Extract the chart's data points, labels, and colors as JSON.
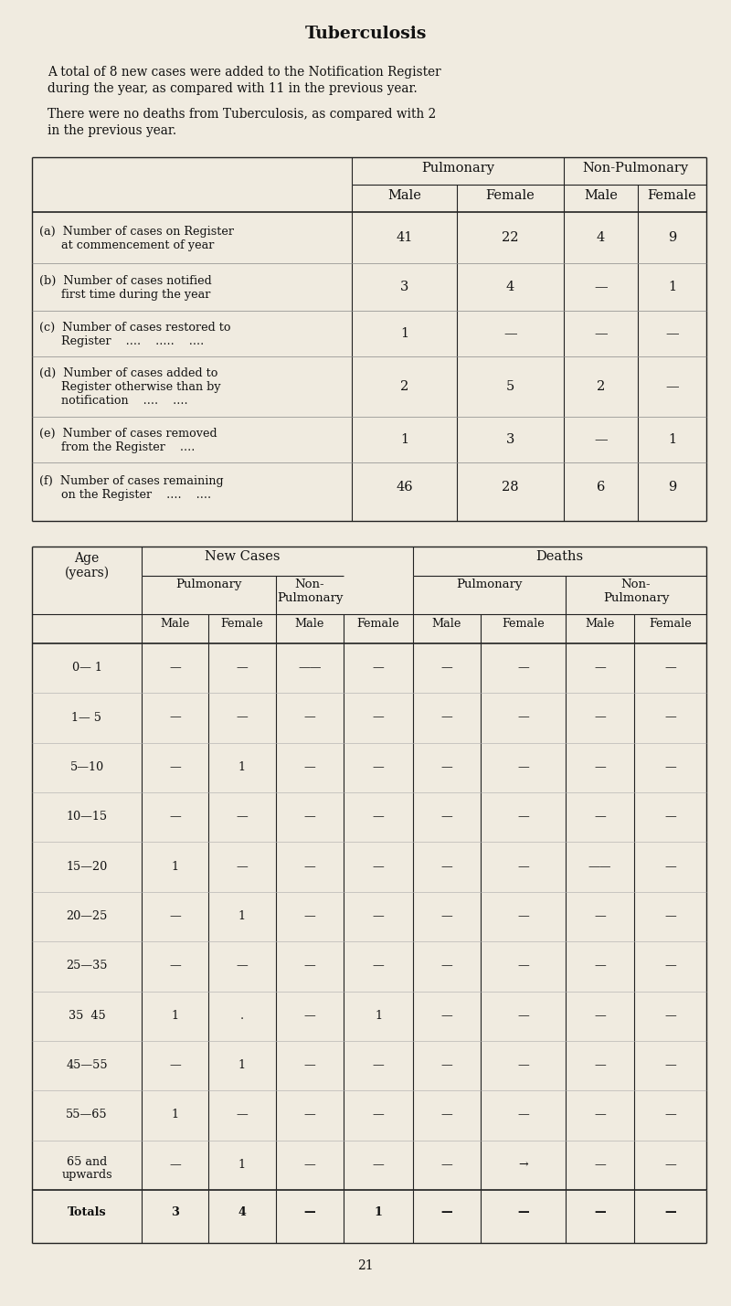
{
  "bg_color": "#f0ebe0",
  "title": "Tuberculosis",
  "para1_line1": "A total of 8 new cases were added to the Notification Register",
  "para1_line2": "during the year, as compared with 11 in the previous year.",
  "para2_line1": "There were no deaths from Tuberculosis, as compared with 2",
  "para2_line2": "in the previous year.",
  "table1_rows": [
    [
      "(a)  Number of cases on Register",
      "at commencement of year",
      "",
      "41",
      "22",
      "4",
      "9"
    ],
    [
      "(b)  Number of cases notified",
      "first time during the year",
      "",
      "3",
      "4",
      "—",
      "1"
    ],
    [
      "(c)  Number of cases restored to",
      "Register    ....    .....    ....",
      "",
      "1",
      "—",
      "—",
      "—"
    ],
    [
      "(d)  Number of cases added to",
      "Register otherwise than by",
      "notification    ....    ....",
      "2",
      "5",
      "2",
      "—"
    ],
    [
      "(e)  Number of cases removed",
      "from the Register    ....",
      "",
      "1",
      "3",
      "—",
      "1"
    ],
    [
      "(f)  Number of cases remaining",
      "on the Register    ....    ....",
      "",
      "46",
      "28",
      "6",
      "9"
    ]
  ],
  "age_groups": [
    "0— 1",
    "1— 5",
    "5—10",
    "10—15",
    "15—20",
    "20—25",
    "25—35",
    "35  45",
    "45—55",
    "55—65",
    "65 and\nupwards",
    "Totals"
  ],
  "nc_pm": [
    "—",
    "—",
    "—",
    "—",
    "1",
    "—",
    "—",
    "1",
    "—",
    "1",
    "—",
    "3"
  ],
  "nc_pf": [
    "—",
    "—",
    "1",
    "—",
    "—",
    "1",
    "—",
    ".",
    "1",
    "—",
    "1",
    "4"
  ],
  "nc_npm": [
    "——",
    "—",
    "—",
    "—",
    "—",
    "—",
    "—",
    "—",
    "—",
    "—",
    "—",
    "—"
  ],
  "nc_npf": [
    "—",
    "—",
    "—",
    "—",
    "—",
    "—",
    "—",
    "1",
    "—",
    "—",
    "—",
    "1"
  ],
  "d_pm": [
    "—",
    "—",
    "—",
    "—",
    "—",
    "—",
    "—",
    "—",
    "—",
    "—",
    "—",
    "—"
  ],
  "d_pf": [
    "—",
    "—",
    "—",
    "—",
    "—",
    "—",
    "—",
    "—",
    "—",
    "—",
    "→",
    "—"
  ],
  "d_npm": [
    "—",
    "—",
    "—",
    "—",
    "——",
    "—",
    "—",
    "—",
    "—",
    "—",
    "—",
    "—"
  ],
  "d_npf": [
    "—",
    "—",
    "—",
    "—",
    "—",
    "—",
    "—",
    "—",
    "—",
    "—",
    "—",
    "—"
  ],
  "page_number": "21"
}
